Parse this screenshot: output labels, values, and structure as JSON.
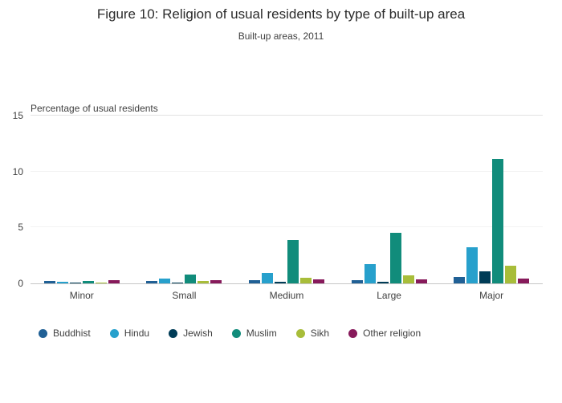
{
  "chart_data": {
    "type": "bar",
    "title": "Figure 10: Religion of usual residents by type of built-up area",
    "subtitle": "Built-up areas, 2011",
    "ylabel": "Percentage of usual residents",
    "xlabel": "",
    "categories": [
      "Minor",
      "Small",
      "Medium",
      "Large",
      "Major"
    ],
    "series": [
      {
        "name": "Buddhist",
        "color": "#206095",
        "values": [
          0.25,
          0.25,
          0.3,
          0.3,
          0.6
        ]
      },
      {
        "name": "Hindu",
        "color": "#27a0cc",
        "values": [
          0.15,
          0.45,
          0.9,
          1.7,
          3.2
        ]
      },
      {
        "name": "Jewish",
        "color": "#003c57",
        "values": [
          0.1,
          0.1,
          0.15,
          0.15,
          1.1
        ]
      },
      {
        "name": "Muslim",
        "color": "#118c7b",
        "values": [
          0.25,
          0.8,
          3.9,
          4.5,
          11.1
        ]
      },
      {
        "name": "Sikh",
        "color": "#a8bd3a",
        "values": [
          0.05,
          0.25,
          0.5,
          0.75,
          1.6
        ]
      },
      {
        "name": "Other religion",
        "color": "#871a5b",
        "values": [
          0.3,
          0.3,
          0.35,
          0.35,
          0.45
        ]
      }
    ],
    "ylim": [
      0,
      15
    ],
    "yticks": [
      0,
      5,
      10,
      15
    ],
    "grid": false,
    "legend_position": "bottom"
  }
}
